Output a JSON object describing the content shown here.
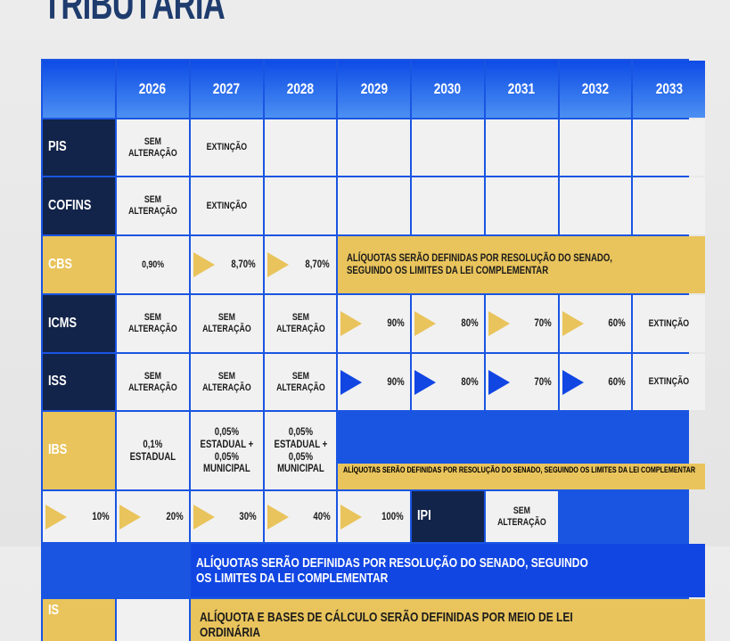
{
  "title": "TRIBUTÁRIA",
  "years": [
    "2026",
    "2027",
    "2028",
    "2029",
    "2030",
    "2031",
    "2032",
    "2033"
  ],
  "rows": {
    "pis": {
      "label": "PIS",
      "c2026": "SEM ALTERAÇÃO",
      "c2027": "EXTINÇÃO"
    },
    "cofins": {
      "label": "COFINS",
      "c2026": "SEM ALTERAÇÃO",
      "c2027": "EXTINÇÃO"
    },
    "cbs": {
      "label": "CBS",
      "c2026": "0,90%",
      "c2027": "8,70%",
      "c2028": "8,70%",
      "span": "ALÍQUOTAS SERÃO DEFINIDAS POR RESOLUÇÃO DO SENADO, SEGUINDO OS LIMITES DA LEI COMPLEMENTAR"
    },
    "icms": {
      "label": "ICMS",
      "c2026": "SEM ALTERAÇÃO",
      "c2027": "SEM ALTERAÇÃO",
      "c2028": "SEM ALTERAÇÃO",
      "c2029": "90%",
      "c2030": "80%",
      "c2031": "70%",
      "c2032": "60%",
      "c2033": "EXTINÇÃO"
    },
    "iss": {
      "label": "ISS",
      "c2026": "SEM ALTERAÇÃO",
      "c2027": "SEM ALTERAÇÃO",
      "c2028": "SEM ALTERAÇÃO",
      "c2029": "90%",
      "c2030": "80%",
      "c2031": "70%",
      "c2032": "60%",
      "c2033": "EXTINÇÃO"
    },
    "ibs": {
      "label": "IBS",
      "c2026": "0,1% ESTADUAL",
      "c2027": "0,05% ESTADUAL + 0,05% MUNICIPAL",
      "c2028": "0,05% ESTADUAL + 0,05% MUNICIPAL",
      "c2029": "10%",
      "c2030": "20%",
      "c2031": "30%",
      "c2032": "40%",
      "c2033": "100%",
      "band": "ALÍQUOTAS SERÃO DEFINIDAS POR RESOLUÇÃO DO SENADO, SEGUINDO OS LIMITES DA LEI COMPLEMENTAR"
    },
    "ipi": {
      "label": "IPI",
      "c2026": "SEM ALTERAÇÃO",
      "span": "ALÍQUOTAS SERÃO DEFINIDAS POR RESOLUÇÃO DO SENADO, SEGUINDO OS LIMITES DA LEI COMPLEMENTAR"
    },
    "is": {
      "label": "IS",
      "span": "ALÍQUOTA E BASES DE CÁLCULO SERÃO DEFINIDAS POR MEIO DE LEI ORDINÁRIA"
    }
  },
  "colors": {
    "header_blue": "#0d4be6",
    "navy": "#13244a",
    "yellow": "#e9c45c",
    "blue": "#1146e3"
  }
}
